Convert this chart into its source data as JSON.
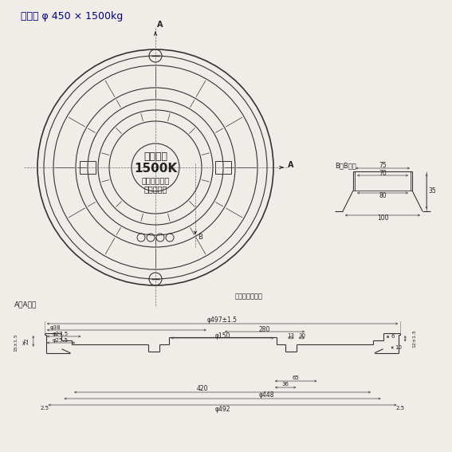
{
  "title": "アムズ φ 450 × 1500kg",
  "bg_color": "#f0ede8",
  "line_color": "#333333",
  "dim_color": "#444444",
  "text_color": "#222222",
  "center_text1": "安全荷重",
  "center_text2": "1500K",
  "center_text3a": "必ずロックを",
  "center_text3b": "して下さい",
  "section_label_aa": "A－A断面",
  "section_label_bb": "B－B断面",
  "mouth_marker": "口環表示マーク"
}
